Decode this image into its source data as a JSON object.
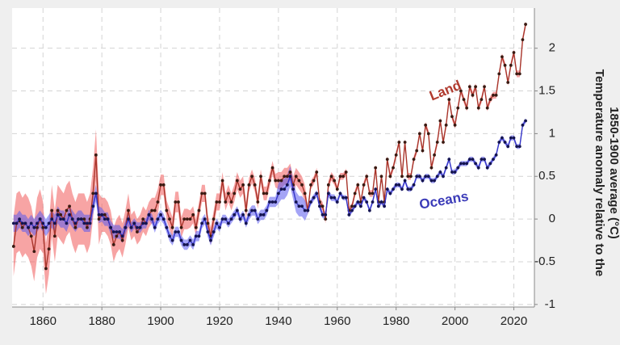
{
  "chart_data": {
    "type": "line",
    "ylabel": [
      "Temperature anomaly relative to the",
      "1850-1900 average (°C)"
    ],
    "annotations": [
      "Land",
      "Oceans"
    ],
    "x": [
      1850,
      1851,
      1852,
      1853,
      1854,
      1855,
      1856,
      1857,
      1858,
      1859,
      1860,
      1861,
      1862,
      1863,
      1864,
      1865,
      1866,
      1867,
      1868,
      1869,
      1870,
      1871,
      1872,
      1873,
      1874,
      1875,
      1876,
      1877,
      1878,
      1879,
      1880,
      1881,
      1882,
      1883,
      1884,
      1885,
      1886,
      1887,
      1888,
      1889,
      1890,
      1891,
      1892,
      1893,
      1894,
      1895,
      1896,
      1897,
      1898,
      1899,
      1900,
      1901,
      1902,
      1903,
      1904,
      1905,
      1906,
      1907,
      1908,
      1909,
      1910,
      1911,
      1912,
      1913,
      1914,
      1915,
      1916,
      1917,
      1918,
      1919,
      1920,
      1921,
      1922,
      1923,
      1924,
      1925,
      1926,
      1927,
      1928,
      1929,
      1930,
      1931,
      1932,
      1933,
      1934,
      1935,
      1936,
      1937,
      1938,
      1939,
      1940,
      1941,
      1942,
      1943,
      1944,
      1945,
      1946,
      1947,
      1948,
      1949,
      1950,
      1951,
      1952,
      1953,
      1954,
      1955,
      1956,
      1957,
      1958,
      1959,
      1960,
      1961,
      1962,
      1963,
      1964,
      1965,
      1966,
      1967,
      1968,
      1969,
      1970,
      1971,
      1972,
      1973,
      1974,
      1975,
      1976,
      1977,
      1978,
      1979,
      1980,
      1981,
      1982,
      1983,
      1984,
      1985,
      1986,
      1987,
      1988,
      1989,
      1990,
      1991,
      1992,
      1993,
      1994,
      1995,
      1996,
      1997,
      1998,
      1999,
      2000,
      2001,
      2002,
      2003,
      2004,
      2005,
      2006,
      2007,
      2008,
      2009,
      2010,
      2011,
      2012,
      2013,
      2014,
      2015,
      2016,
      2017,
      2018,
      2019,
      2020,
      2021,
      2022,
      2023,
      2024
    ],
    "series": [
      {
        "name": "Land",
        "color": "#a8342a",
        "band_color": "#f05a5a",
        "marker_color": "#3a1a12",
        "values": [
          -0.32,
          -0.05,
          -0.02,
          -0.1,
          -0.05,
          -0.1,
          -0.2,
          -0.38,
          -0.1,
          0.0,
          -0.1,
          -0.58,
          -0.35,
          0.1,
          -0.2,
          0.1,
          0.05,
          0.0,
          0.1,
          0.15,
          0.0,
          -0.1,
          0.0,
          0.0,
          0.0,
          -0.1,
          0.0,
          0.3,
          0.75,
          0.0,
          0.05,
          0.05,
          0.0,
          -0.1,
          -0.3,
          -0.2,
          -0.15,
          -0.25,
          -0.1,
          0.1,
          -0.1,
          -0.05,
          -0.15,
          -0.1,
          0.0,
          -0.05,
          0.05,
          0.1,
          0.1,
          0.2,
          0.4,
          0.4,
          0.1,
          0.0,
          -0.1,
          0.2,
          0.2,
          -0.1,
          0.0,
          0.0,
          0.0,
          0.05,
          -0.1,
          0.1,
          0.3,
          0.3,
          -0.05,
          -0.2,
          0.0,
          0.2,
          0.2,
          0.45,
          0.2,
          0.3,
          0.2,
          0.3,
          0.45,
          0.35,
          0.4,
          0.1,
          0.4,
          0.5,
          0.4,
          0.2,
          0.5,
          0.3,
          0.3,
          0.45,
          0.6,
          0.45,
          0.45,
          0.45,
          0.5,
          0.5,
          0.55,
          0.4,
          0.5,
          0.45,
          0.4,
          0.3,
          0.1,
          0.4,
          0.45,
          0.55,
          0.2,
          0.15,
          0.0,
          0.4,
          0.5,
          0.45,
          0.35,
          0.5,
          0.5,
          0.55,
          0.1,
          0.15,
          0.3,
          0.4,
          0.2,
          0.4,
          0.5,
          0.3,
          0.3,
          0.6,
          0.2,
          0.5,
          0.2,
          0.7,
          0.5,
          0.6,
          0.75,
          0.9,
          0.5,
          0.9,
          0.5,
          0.5,
          0.7,
          0.8,
          1.0,
          0.8,
          1.1,
          1.0,
          0.6,
          0.75,
          0.9,
          1.15,
          0.9,
          1.1,
          1.4,
          1.2,
          1.1,
          1.3,
          1.5,
          1.4,
          1.3,
          1.55,
          1.45,
          1.55,
          1.3,
          1.4,
          1.55,
          1.3,
          1.4,
          1.45,
          1.45,
          1.7,
          1.9,
          1.8,
          1.6,
          1.8,
          1.95,
          1.7,
          1.7,
          2.1,
          2.28
        ],
        "error": [
          0.35,
          0.35,
          0.35,
          0.35,
          0.35,
          0.35,
          0.35,
          0.35,
          0.35,
          0.35,
          0.3,
          0.3,
          0.3,
          0.3,
          0.3,
          0.3,
          0.3,
          0.3,
          0.3,
          0.3,
          0.3,
          0.3,
          0.3,
          0.3,
          0.3,
          0.3,
          0.3,
          0.3,
          0.3,
          0.3,
          0.2,
          0.2,
          0.2,
          0.2,
          0.2,
          0.2,
          0.2,
          0.2,
          0.2,
          0.2,
          0.15,
          0.15,
          0.15,
          0.15,
          0.15,
          0.15,
          0.15,
          0.15,
          0.15,
          0.15,
          0.12,
          0.12,
          0.12,
          0.12,
          0.12,
          0.12,
          0.12,
          0.12,
          0.12,
          0.12,
          0.1,
          0.1,
          0.1,
          0.1,
          0.1,
          0.1,
          0.1,
          0.1,
          0.1,
          0.1,
          0.1,
          0.1,
          0.1,
          0.1,
          0.1,
          0.1,
          0.1,
          0.1,
          0.1,
          0.1,
          0.08,
          0.08,
          0.08,
          0.08,
          0.08,
          0.08,
          0.08,
          0.08,
          0.08,
          0.08,
          0.1,
          0.1,
          0.1,
          0.1,
          0.1,
          0.1,
          0.1,
          0.1,
          0.1,
          0.1,
          0.05,
          0.05,
          0.05,
          0.05,
          0.05,
          0.05,
          0.05,
          0.05,
          0.05,
          0.05,
          0.04,
          0.04,
          0.04,
          0.04,
          0.04,
          0.04,
          0.04,
          0.04,
          0.04,
          0.04,
          0.04,
          0.04,
          0.04,
          0.04,
          0.04,
          0.04,
          0.04,
          0.04,
          0.04,
          0.04,
          0.04,
          0.04,
          0.04,
          0.04,
          0.04,
          0.04,
          0.04,
          0.04,
          0.04,
          0.04,
          0.04,
          0.04,
          0.04,
          0.04,
          0.04,
          0.04,
          0.04,
          0.04,
          0.04,
          0.04,
          0.04,
          0.04,
          0.04,
          0.04,
          0.04,
          0.04,
          0.04,
          0.04,
          0.04,
          0.04,
          0.04,
          0.04,
          0.04,
          0.04,
          0.04,
          0.04,
          0.04,
          0.04,
          0.04,
          0.04,
          0.04,
          0.04,
          0.04,
          0.04,
          0.04
        ]
      },
      {
        "name": "Oceans",
        "color": "#3434c8",
        "band_color": "#5a5aee",
        "marker_color": "#141450",
        "values": [
          -0.05,
          -0.05,
          0.0,
          -0.05,
          -0.05,
          -0.1,
          -0.05,
          -0.1,
          -0.05,
          0.0,
          -0.05,
          -0.1,
          -0.05,
          0.0,
          -0.05,
          0.05,
          0.0,
          0.0,
          -0.05,
          0.05,
          0.0,
          -0.05,
          0.0,
          0.0,
          -0.05,
          -0.05,
          -0.05,
          0.15,
          0.3,
          0.05,
          0.05,
          0.0,
          0.0,
          -0.1,
          -0.15,
          -0.15,
          -0.15,
          -0.2,
          -0.1,
          0.0,
          -0.1,
          -0.05,
          -0.1,
          -0.1,
          -0.05,
          -0.05,
          0.05,
          0.0,
          -0.1,
          0.0,
          0.05,
          0.0,
          -0.1,
          -0.2,
          -0.25,
          -0.15,
          -0.15,
          -0.25,
          -0.3,
          -0.3,
          -0.25,
          -0.3,
          -0.2,
          -0.2,
          -0.05,
          0.0,
          -0.15,
          -0.25,
          -0.15,
          -0.05,
          -0.1,
          0.0,
          0.0,
          -0.05,
          0.0,
          0.05,
          0.1,
          0.0,
          0.05,
          -0.05,
          0.05,
          0.1,
          0.1,
          0.0,
          0.05,
          0.05,
          0.1,
          0.2,
          0.2,
          0.2,
          0.3,
          0.35,
          0.35,
          0.4,
          0.5,
          0.35,
          0.2,
          0.15,
          0.15,
          0.1,
          0.1,
          0.2,
          0.25,
          0.3,
          0.15,
          0.05,
          0.05,
          0.3,
          0.25,
          0.25,
          0.2,
          0.3,
          0.25,
          0.25,
          0.05,
          0.1,
          0.15,
          0.2,
          0.15,
          0.25,
          0.2,
          0.1,
          0.2,
          0.35,
          0.15,
          0.2,
          0.15,
          0.35,
          0.3,
          0.35,
          0.4,
          0.4,
          0.35,
          0.45,
          0.35,
          0.35,
          0.4,
          0.5,
          0.5,
          0.45,
          0.5,
          0.5,
          0.45,
          0.45,
          0.5,
          0.55,
          0.5,
          0.6,
          0.7,
          0.55,
          0.55,
          0.6,
          0.65,
          0.65,
          0.65,
          0.7,
          0.7,
          0.65,
          0.6,
          0.7,
          0.7,
          0.6,
          0.65,
          0.7,
          0.75,
          0.9,
          0.95,
          0.9,
          0.85,
          0.95,
          0.95,
          0.85,
          0.85,
          1.1,
          1.15
        ],
        "error": [
          0.1,
          0.1,
          0.1,
          0.1,
          0.1,
          0.1,
          0.1,
          0.1,
          0.1,
          0.1,
          0.1,
          0.1,
          0.1,
          0.1,
          0.1,
          0.1,
          0.1,
          0.1,
          0.1,
          0.1,
          0.1,
          0.1,
          0.1,
          0.1,
          0.1,
          0.1,
          0.1,
          0.1,
          0.1,
          0.1,
          0.08,
          0.08,
          0.08,
          0.08,
          0.08,
          0.08,
          0.08,
          0.08,
          0.08,
          0.08,
          0.06,
          0.06,
          0.06,
          0.06,
          0.06,
          0.06,
          0.06,
          0.06,
          0.06,
          0.06,
          0.06,
          0.06,
          0.06,
          0.06,
          0.06,
          0.06,
          0.06,
          0.06,
          0.06,
          0.06,
          0.06,
          0.06,
          0.06,
          0.06,
          0.06,
          0.06,
          0.06,
          0.06,
          0.06,
          0.06,
          0.05,
          0.05,
          0.05,
          0.05,
          0.05,
          0.05,
          0.05,
          0.05,
          0.05,
          0.05,
          0.06,
          0.06,
          0.06,
          0.06,
          0.06,
          0.06,
          0.06,
          0.06,
          0.06,
          0.06,
          0.12,
          0.12,
          0.12,
          0.12,
          0.12,
          0.12,
          0.12,
          0.12,
          0.12,
          0.12,
          0.04,
          0.04,
          0.04,
          0.04,
          0.04,
          0.04,
          0.04,
          0.04,
          0.04,
          0.04,
          0.03,
          0.03,
          0.03,
          0.03,
          0.03,
          0.03,
          0.03,
          0.03,
          0.03,
          0.03,
          0.03,
          0.03,
          0.03,
          0.03,
          0.03,
          0.03,
          0.03,
          0.03,
          0.03,
          0.03,
          0.03,
          0.03,
          0.03,
          0.03,
          0.03,
          0.03,
          0.03,
          0.03,
          0.03,
          0.03,
          0.03,
          0.03,
          0.03,
          0.03,
          0.03,
          0.03,
          0.03,
          0.03,
          0.03,
          0.03,
          0.03,
          0.03,
          0.03,
          0.03,
          0.03,
          0.03,
          0.03,
          0.03,
          0.03,
          0.03,
          0.03,
          0.03,
          0.03,
          0.03,
          0.03,
          0.03,
          0.03,
          0.03,
          0.03,
          0.03,
          0.03,
          0.03,
          0.03,
          0.03,
          0.03
        ]
      }
    ],
    "xlim": [
      1849.5,
      2027
    ],
    "xticks": [
      1860,
      1880,
      1900,
      1920,
      1940,
      1960,
      1980,
      2000,
      2020
    ],
    "ylim": [
      -1.03,
      2.47
    ],
    "yticks": [
      -1,
      -0.5,
      0,
      0.5,
      1,
      1.5,
      2
    ],
    "grid": true,
    "y_axis_side": "right"
  }
}
